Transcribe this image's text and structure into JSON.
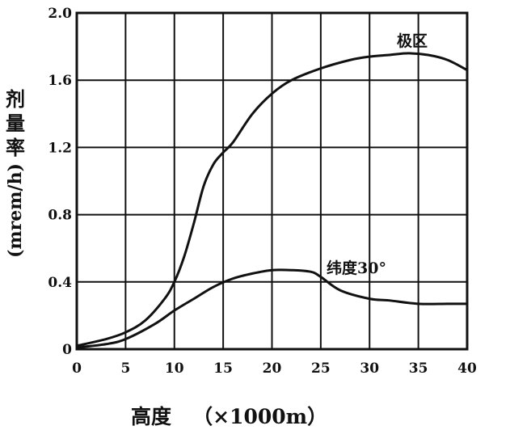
{
  "chart_data": {
    "type": "line",
    "xlabel": "高度   （×1000m）",
    "ylabel_chars": [
      "剂",
      "量",
      "率"
    ],
    "ylabel_unit": "(mrem/h)",
    "xlim": [
      0,
      40
    ],
    "ylim": [
      0,
      2.0
    ],
    "xticks": [
      "0",
      "5",
      "10",
      "15",
      "20",
      "25",
      "30",
      "35",
      "40"
    ],
    "yticks": [
      "0",
      "0.4",
      "0.8",
      "1.2",
      "1.6",
      "2.0"
    ],
    "grid": true,
    "series": [
      {
        "name": "极区",
        "x": [
          0,
          3,
          5,
          7,
          9,
          10,
          11,
          12,
          13,
          14,
          15,
          16,
          18,
          20,
          22,
          25,
          28,
          30,
          32,
          34,
          36,
          38,
          40
        ],
        "y": [
          0.02,
          0.06,
          0.1,
          0.17,
          0.3,
          0.4,
          0.55,
          0.75,
          0.97,
          1.1,
          1.17,
          1.23,
          1.4,
          1.52,
          1.6,
          1.67,
          1.72,
          1.74,
          1.75,
          1.76,
          1.75,
          1.72,
          1.66
        ]
      },
      {
        "name": "纬度30°",
        "x": [
          0,
          3,
          5,
          8,
          10,
          12,
          14,
          16,
          18,
          20,
          22,
          24,
          25,
          27,
          30,
          32,
          35,
          38,
          40
        ],
        "y": [
          0.01,
          0.03,
          0.06,
          0.15,
          0.23,
          0.3,
          0.37,
          0.42,
          0.45,
          0.47,
          0.47,
          0.46,
          0.43,
          0.35,
          0.3,
          0.29,
          0.27,
          0.27,
          0.27
        ]
      }
    ],
    "colors": {
      "line": "#111111",
      "grid": "#111111",
      "background": "#ffffff"
    }
  }
}
